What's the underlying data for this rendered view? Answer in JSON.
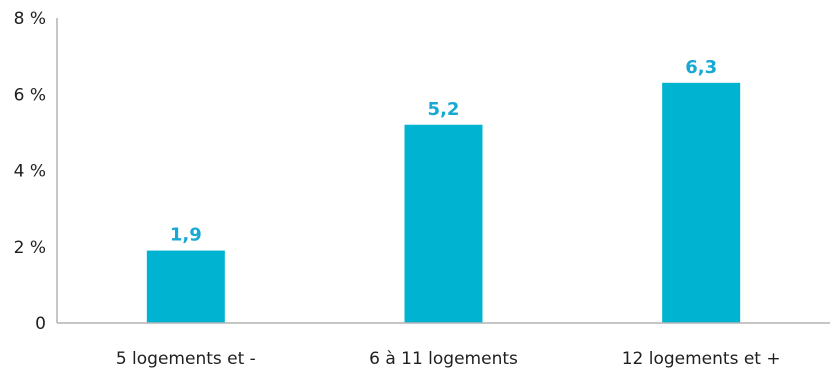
{
  "chart_data": {
    "type": "bar",
    "title": "",
    "xlabel": "",
    "ylabel": "",
    "categories": [
      "5 logements et -",
      "6 à 11 logements",
      "12 logements et +"
    ],
    "values": [
      1.9,
      5.2,
      6.3
    ],
    "data_labels": [
      "1,9",
      "5,2",
      "6,3"
    ],
    "ylim": [
      0,
      8
    ],
    "y_ticks": [
      0,
      2,
      4,
      6,
      8
    ],
    "y_tick_labels": [
      "0",
      "2 %",
      "4 %",
      "6 %",
      "8 %"
    ],
    "grid": false,
    "legend": "none",
    "colors": {
      "bar": "#00B4D1",
      "data_label": "#17A9D3",
      "axis": "#B3B3B3",
      "text": "#1F1F1F"
    }
  }
}
